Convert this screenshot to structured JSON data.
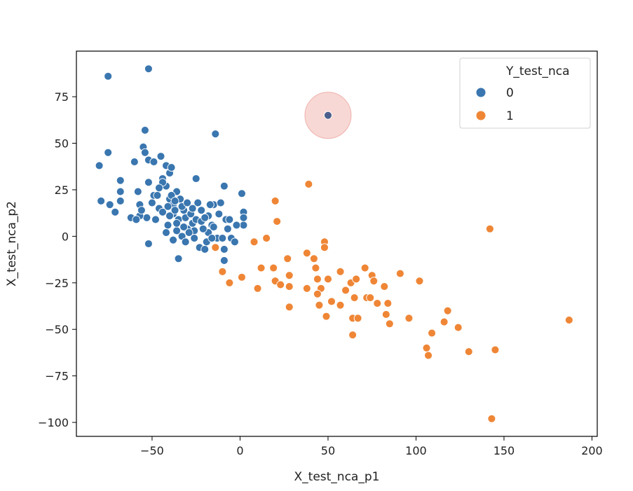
{
  "chart_data": {
    "type": "scatter",
    "xlabel": "X_test_nca_p1",
    "ylabel": "X_test_nca_p2",
    "xlim": [
      -93,
      203
    ],
    "ylim": [
      -107.5,
      99.5
    ],
    "x_ticks": [
      -50,
      0,
      50,
      100,
      150,
      200
    ],
    "y_ticks": [
      75,
      50,
      25,
      0,
      -25,
      -50,
      -75,
      -100
    ],
    "x_tick_labels": [
      "−50",
      "0",
      "50",
      "100",
      "150",
      "200"
    ],
    "y_tick_labels": [
      "75",
      "50",
      "25",
      "0",
      "−25",
      "−50",
      "−75",
      "−100"
    ],
    "grid": false,
    "legend": {
      "title": "Y_test_nca",
      "placement": "top-right",
      "entries": [
        "0",
        "1"
      ]
    },
    "colors": {
      "0": "#3a76af",
      "1": "#ef8636",
      "highlight": "#f0a8a0"
    },
    "highlight": {
      "x": 50,
      "y": 65
    },
    "series": [
      {
        "name": "0",
        "points": [
          [
            -75,
            86
          ],
          [
            -52,
            90
          ],
          [
            -80,
            38
          ],
          [
            -75,
            45
          ],
          [
            -79,
            19
          ],
          [
            -74,
            17
          ],
          [
            -71,
            13
          ],
          [
            -68,
            24
          ],
          [
            -68,
            30
          ],
          [
            -68,
            19
          ],
          [
            -60,
            40
          ],
          [
            -58,
            24
          ],
          [
            -57,
            17
          ],
          [
            -55,
            48
          ],
          [
            -54,
            57
          ],
          [
            -54,
            45
          ],
          [
            -52,
            41
          ],
          [
            -52,
            29
          ],
          [
            -53,
            10
          ],
          [
            -49,
            40
          ],
          [
            -49,
            22
          ],
          [
            -46,
            15
          ],
          [
            -45,
            43
          ],
          [
            -44,
            31
          ],
          [
            -42,
            38
          ],
          [
            -40,
            34
          ],
          [
            -42,
            27
          ],
          [
            -39,
            37
          ],
          [
            -40,
            20
          ],
          [
            -38,
            17
          ],
          [
            -36,
            24
          ],
          [
            -34,
            20
          ],
          [
            -32,
            14
          ],
          [
            -35,
            9
          ],
          [
            -38,
            12
          ],
          [
            -41,
            6
          ],
          [
            -42,
            2
          ],
          [
            -38,
            -2
          ],
          [
            -36,
            3
          ],
          [
            -33,
            0
          ],
          [
            -30,
            4
          ],
          [
            -31,
            10
          ],
          [
            -27,
            7
          ],
          [
            -25,
            31
          ],
          [
            -24,
            18
          ],
          [
            -22,
            14
          ],
          [
            -26,
            3
          ],
          [
            -23,
            -6
          ],
          [
            -20,
            -7
          ],
          [
            -18,
            2
          ],
          [
            -16,
            6
          ],
          [
            -18,
            11
          ],
          [
            -15,
            17
          ],
          [
            -14,
            55
          ],
          [
            -11,
            18
          ],
          [
            -9,
            27
          ],
          [
            -8,
            9
          ],
          [
            -9,
            -7
          ],
          [
            -9,
            -13
          ],
          [
            1,
            23
          ],
          [
            2,
            13
          ],
          [
            2,
            6
          ],
          [
            -2,
            6
          ],
          [
            -52,
            -4
          ],
          [
            -35,
            -12
          ],
          [
            -57,
            11
          ],
          [
            -62,
            10
          ],
          [
            -48,
            9
          ],
          [
            -44,
            13
          ],
          [
            -41,
            16
          ],
          [
            -39,
            22
          ],
          [
            -37,
            19
          ],
          [
            -33,
            16
          ],
          [
            -30,
            18
          ],
          [
            -28,
            12
          ],
          [
            -25,
            9
          ],
          [
            -21,
            4
          ],
          [
            -19,
            -3
          ],
          [
            -15,
            5
          ],
          [
            -13,
            -1
          ],
          [
            -10,
            -1
          ],
          [
            -7,
            4
          ],
          [
            -5,
            -1
          ],
          [
            -22,
            8
          ],
          [
            -26,
            -1
          ],
          [
            -32,
            5
          ],
          [
            -36,
            7
          ],
          [
            -40,
            11
          ],
          [
            -44,
            29
          ],
          [
            -47,
            22
          ],
          [
            -29,
            2
          ],
          [
            -20,
            10
          ],
          [
            -17,
            17
          ],
          [
            -12,
            12
          ],
          [
            -6,
            9
          ],
          [
            -3,
            -3
          ],
          [
            -50,
            18
          ],
          [
            -56,
            14
          ],
          [
            -46,
            26
          ],
          [
            -31,
            -3
          ],
          [
            2,
            10
          ],
          [
            -59,
            9
          ],
          [
            -37,
            14
          ],
          [
            -27,
            15
          ],
          [
            -16,
            -1
          ]
        ]
      },
      {
        "name": "1",
        "points": [
          [
            -14,
            -6
          ],
          [
            -10,
            -19
          ],
          [
            -6,
            -25
          ],
          [
            1,
            -22
          ],
          [
            8,
            -3
          ],
          [
            10,
            -28
          ],
          [
            12,
            -17
          ],
          [
            15,
            -1
          ],
          [
            19,
            -17
          ],
          [
            20,
            19
          ],
          [
            20,
            -24
          ],
          [
            21,
            8
          ],
          [
            23,
            -26
          ],
          [
            27,
            -12
          ],
          [
            28,
            -21
          ],
          [
            28,
            -27
          ],
          [
            28,
            -38
          ],
          [
            38,
            -28
          ],
          [
            38,
            -9
          ],
          [
            39,
            28
          ],
          [
            42,
            -12
          ],
          [
            43,
            -17
          ],
          [
            44,
            -31
          ],
          [
            44,
            -23
          ],
          [
            45,
            -37
          ],
          [
            46,
            -28
          ],
          [
            48,
            -3
          ],
          [
            48,
            -6
          ],
          [
            49,
            -43
          ],
          [
            52,
            -35
          ],
          [
            57,
            -37
          ],
          [
            57,
            -19
          ],
          [
            60,
            -29
          ],
          [
            63,
            -25
          ],
          [
            64,
            -44
          ],
          [
            64,
            -53
          ],
          [
            65,
            -33
          ],
          [
            66,
            -23
          ],
          [
            67,
            -44
          ],
          [
            71,
            -17
          ],
          [
            72,
            -33
          ],
          [
            74,
            -33
          ],
          [
            75,
            -21
          ],
          [
            78,
            -36
          ],
          [
            82,
            -27
          ],
          [
            83,
            -42
          ],
          [
            84,
            -36
          ],
          [
            85,
            -47
          ],
          [
            91,
            -20
          ],
          [
            96,
            -44
          ],
          [
            102,
            -24
          ],
          [
            106,
            -60
          ],
          [
            107,
            -64
          ],
          [
            109,
            -52
          ],
          [
            116,
            -46
          ],
          [
            118,
            -40
          ],
          [
            124,
            -49
          ],
          [
            130,
            -62
          ],
          [
            142,
            4
          ],
          [
            143,
            -98
          ],
          [
            145,
            -61
          ],
          [
            187,
            -45
          ],
          [
            50,
            -23
          ],
          [
            44,
            -31
          ],
          [
            76,
            -24
          ]
        ]
      }
    ]
  }
}
